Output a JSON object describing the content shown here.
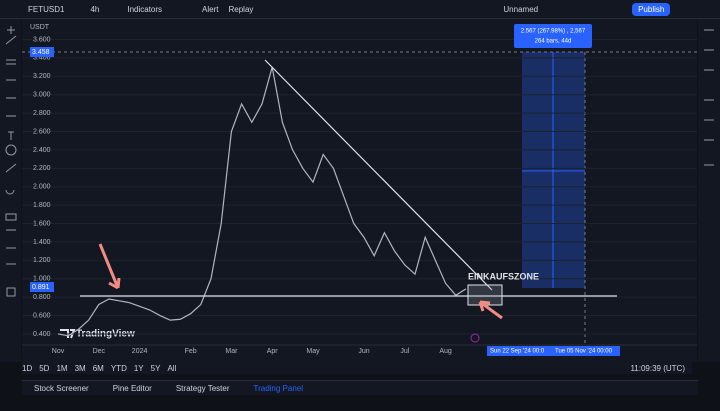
{
  "toolbar": {
    "symbol": "FETUSD1",
    "interval": "4h",
    "items": [
      "Indicators",
      "Alert",
      "Replay"
    ],
    "layout": "Unnamed",
    "publish": "Publish"
  },
  "chart_data": {
    "type": "line",
    "currency_label": "USDT",
    "watermark": "TradingView",
    "color": "#b2b5be",
    "categories": [
      "Nov",
      null,
      null,
      null,
      "Dec",
      null,
      null,
      null,
      "2024",
      null,
      null,
      null,
      null,
      "Feb",
      null,
      null,
      null,
      "Mar",
      null,
      null,
      null,
      "Apr",
      null,
      null,
      null,
      "May",
      null,
      null,
      null,
      null,
      "Jun",
      null,
      null,
      null,
      "Jul",
      null,
      null,
      null,
      "Aug",
      null,
      null,
      null,
      null,
      null,
      null,
      null,
      null,
      null,
      null,
      null,
      null,
      null,
      null,
      null,
      null,
      null,
      null,
      null,
      null,
      null,
      null
    ],
    "values": [
      0.4,
      0.38,
      0.45,
      0.55,
      0.72,
      0.78,
      0.76,
      0.74,
      0.7,
      0.66,
      0.6,
      0.55,
      0.56,
      0.62,
      0.72,
      1.0,
      1.6,
      2.6,
      2.9,
      2.7,
      2.9,
      3.3,
      2.7,
      2.4,
      2.2,
      2.05,
      2.35,
      2.2,
      1.9,
      1.6,
      1.45,
      1.25,
      1.5,
      1.3,
      1.15,
      1.05,
      1.45,
      1.2,
      0.95,
      0.82,
      0.89,
      null,
      null,
      null,
      null,
      null,
      null,
      null,
      null,
      null,
      null,
      null,
      null,
      null,
      null,
      null,
      null,
      null,
      null,
      null,
      null
    ],
    "ylim": [
      0.28,
      3.79
    ],
    "yticks": [
      {
        "value": 0.4,
        "label": "0.400"
      },
      {
        "value": 0.6,
        "label": "0.600"
      },
      {
        "value": 0.8,
        "label": "0.800"
      },
      {
        "value": 1.0,
        "label": "1.000"
      },
      {
        "value": 1.2,
        "label": "1.200"
      },
      {
        "value": 1.4,
        "label": "1.400"
      },
      {
        "value": 1.6,
        "label": "1.600"
      },
      {
        "value": 1.8,
        "label": "1.800"
      },
      {
        "value": 2.0,
        "label": "2.000"
      },
      {
        "value": 2.2,
        "label": "2.200"
      },
      {
        "value": 2.4,
        "label": "2.400"
      },
      {
        "value": 2.6,
        "label": "2.600"
      },
      {
        "value": 2.8,
        "label": "2.800"
      },
      {
        "value": 3.0,
        "label": "3.000"
      },
      {
        "value": 3.2,
        "label": "3.200"
      },
      {
        "value": 3.4,
        "label": "3.400"
      },
      {
        "value": 3.6,
        "label": "3.600"
      }
    ],
    "grid": true,
    "high_label": "3.458",
    "last_price_label": "0.891",
    "annotation": "EINKAUFSZONE",
    "measure": [
      "2.567 (267.98%) , 2,567",
      "264 bars, 44d"
    ],
    "date_range": [
      "Sun 22 Sep '24  00:0",
      "Tue 05 Nov '24  00:00"
    ]
  },
  "timeframes": [
    "1D",
    "5D",
    "1M",
    "3M",
    "6M",
    "YTD",
    "1Y",
    "5Y",
    "All"
  ],
  "clock": "11:09:39 (UTC)",
  "bottom_tabs": [
    "Stock Screener",
    "Pine Editor",
    "Strategy Tester",
    "Trading Panel"
  ]
}
